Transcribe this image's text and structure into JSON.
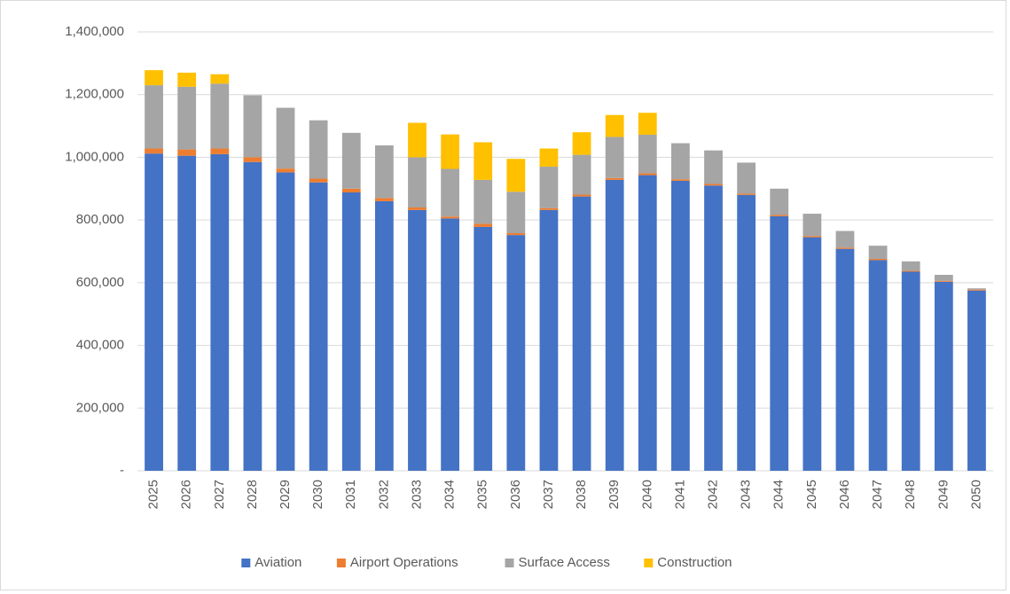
{
  "chart_data": {
    "type": "stacked_bar",
    "categories": [
      "2025",
      "2026",
      "2027",
      "2028",
      "2029",
      "2030",
      "2031",
      "2032",
      "2033",
      "2034",
      "2035",
      "2036",
      "2037",
      "2038",
      "2039",
      "2040",
      "2041",
      "2042",
      "2043",
      "2044",
      "2045",
      "2046",
      "2047",
      "2048",
      "2049",
      "2050"
    ],
    "series": [
      {
        "name": "Aviation",
        "color": "#4472c4",
        "values": [
          1012000,
          1005000,
          1010000,
          985000,
          952000,
          920000,
          888000,
          860000,
          832000,
          805000,
          778000,
          752000,
          832000,
          875000,
          928000,
          943000,
          925000,
          910000,
          880000,
          812000,
          745000,
          708000,
          672000,
          635000,
          603000,
          575000
        ]
      },
      {
        "name": "Airport Operations",
        "color": "#ed7d31",
        "values": [
          16000,
          20000,
          18000,
          15000,
          12000,
          12000,
          12000,
          10000,
          8000,
          6000,
          10000,
          6000,
          6000,
          6000,
          6000,
          6000,
          5000,
          5000,
          4000,
          4000,
          4000,
          4000,
          4000,
          3000,
          3000,
          3000
        ]
      },
      {
        "name": "Surface Access",
        "color": "#a5a5a5",
        "values": [
          202000,
          200000,
          207000,
          198000,
          194000,
          186000,
          178000,
          168000,
          160000,
          152000,
          140000,
          132000,
          132000,
          127000,
          131000,
          123000,
          115000,
          107000,
          99000,
          84000,
          71000,
          53000,
          42000,
          30000,
          19000,
          4000
        ]
      },
      {
        "name": "Construction",
        "color": "#ffc000",
        "values": [
          48000,
          45000,
          30000,
          0,
          0,
          0,
          0,
          0,
          110000,
          110000,
          120000,
          105000,
          58000,
          72000,
          70000,
          70000,
          0,
          0,
          0,
          0,
          0,
          0,
          0,
          0,
          0,
          0
        ]
      }
    ],
    "ylim": [
      0,
      1400000
    ],
    "yticks": [
      {
        "value": 0,
        "label": "-"
      },
      {
        "value": 200000,
        "label": "200,000"
      },
      {
        "value": 400000,
        "label": "400,000"
      },
      {
        "value": 600000,
        "label": "600,000"
      },
      {
        "value": 800000,
        "label": "800,000"
      },
      {
        "value": 1000000,
        "label": "1,000,000"
      },
      {
        "value": 1200000,
        "label": "1,200,000"
      },
      {
        "value": 1400000,
        "label": "1,400,000"
      }
    ],
    "grid": true,
    "legend": "bottom"
  }
}
